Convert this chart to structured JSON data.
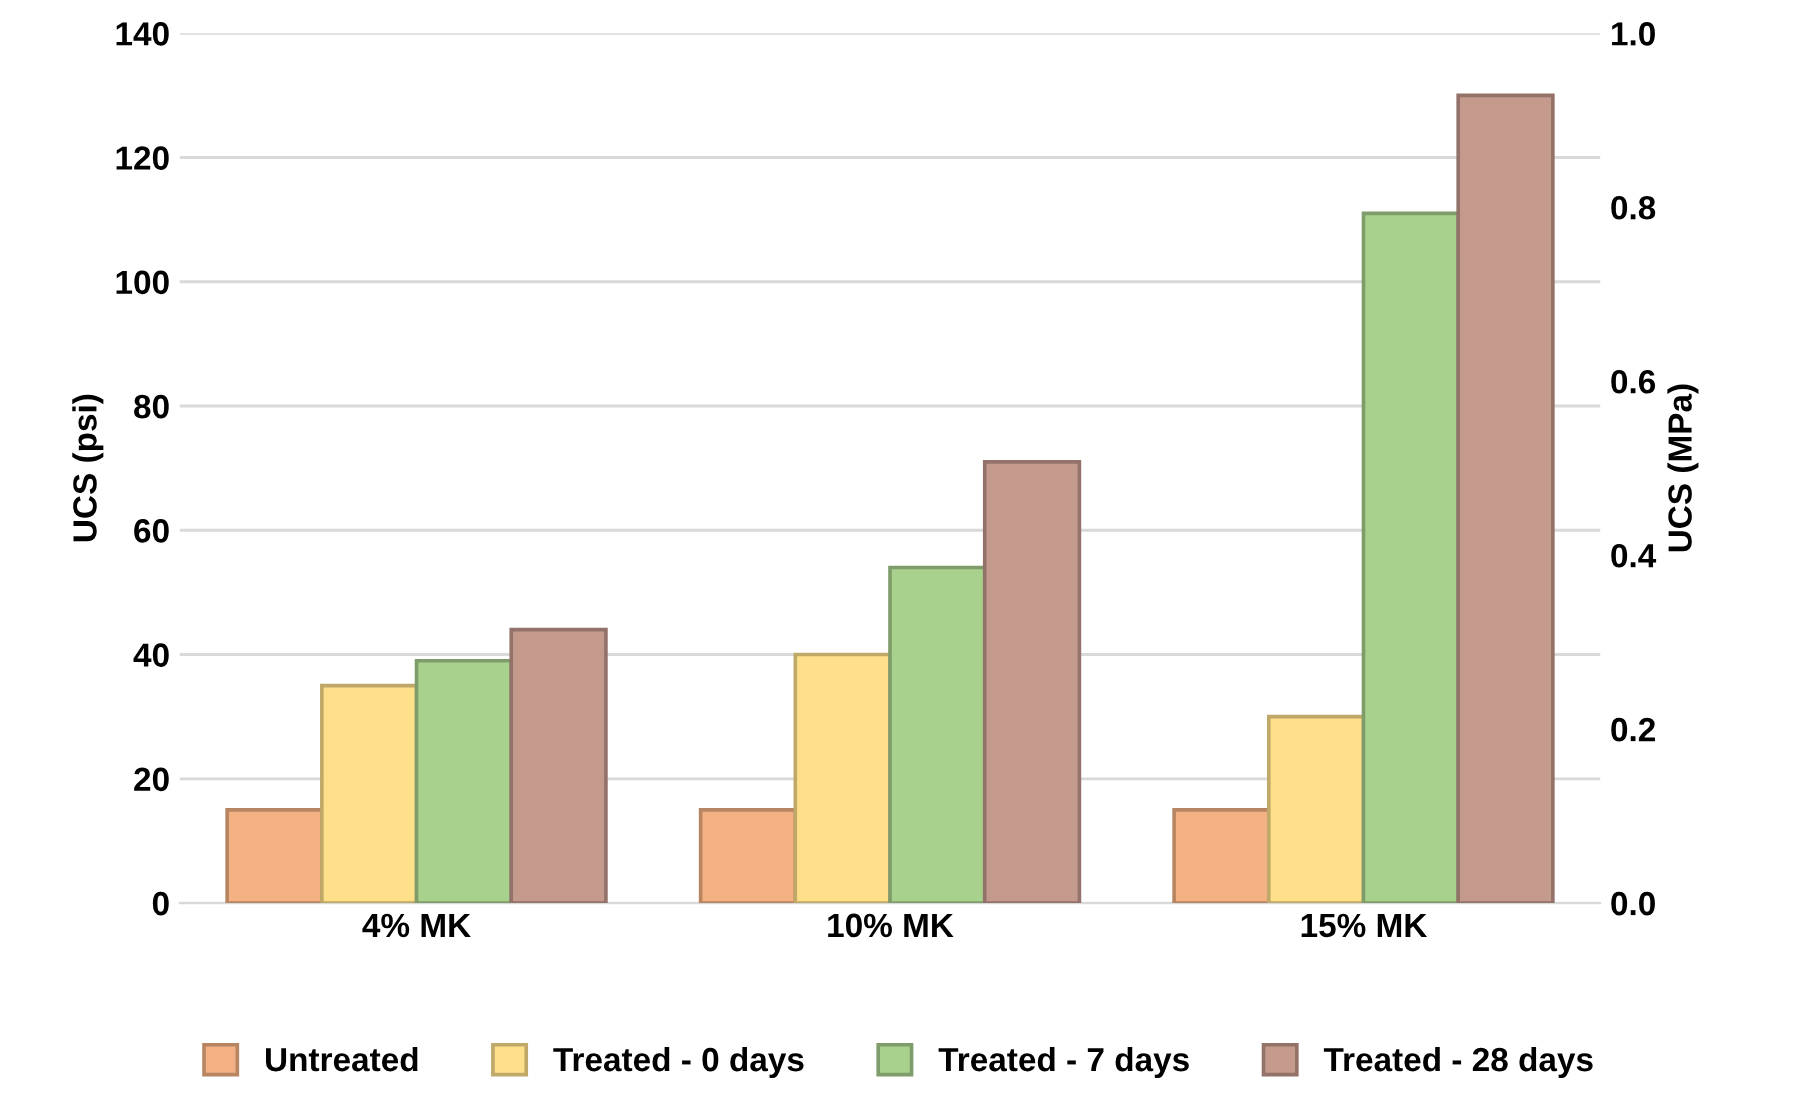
{
  "chart_data": {
    "type": "bar",
    "categories": [
      "4% MK",
      "10% MK",
      "15% MK"
    ],
    "series": [
      {
        "name": "Untreated",
        "color": "#f4b183",
        "values": [
          15,
          15,
          15
        ]
      },
      {
        "name": "Treated - 0 days",
        "color": "#ffe08a",
        "values": [
          35,
          40,
          30
        ]
      },
      {
        "name": "Treated - 7 days",
        "color": "#a9d18e",
        "values": [
          39,
          54,
          111
        ]
      },
      {
        "name": "Treated - 28 days",
        "color": "#c49a8c",
        "values": [
          44,
          71,
          130
        ]
      }
    ],
    "ylabel": "UCS (psi)",
    "y2label": "UCS (MPa)",
    "ylim": [
      0,
      140
    ],
    "yticks": [
      0,
      20,
      40,
      60,
      80,
      100,
      120,
      140
    ],
    "y2lim": [
      0,
      1.0
    ],
    "y2ticks": [
      {
        "value": 0,
        "label": "0.0"
      },
      0.2,
      0.4,
      0.6,
      0.8,
      {
        "value": 1.0,
        "label": "1.0"
      }
    ],
    "grid": "y",
    "legend": "bottom"
  }
}
